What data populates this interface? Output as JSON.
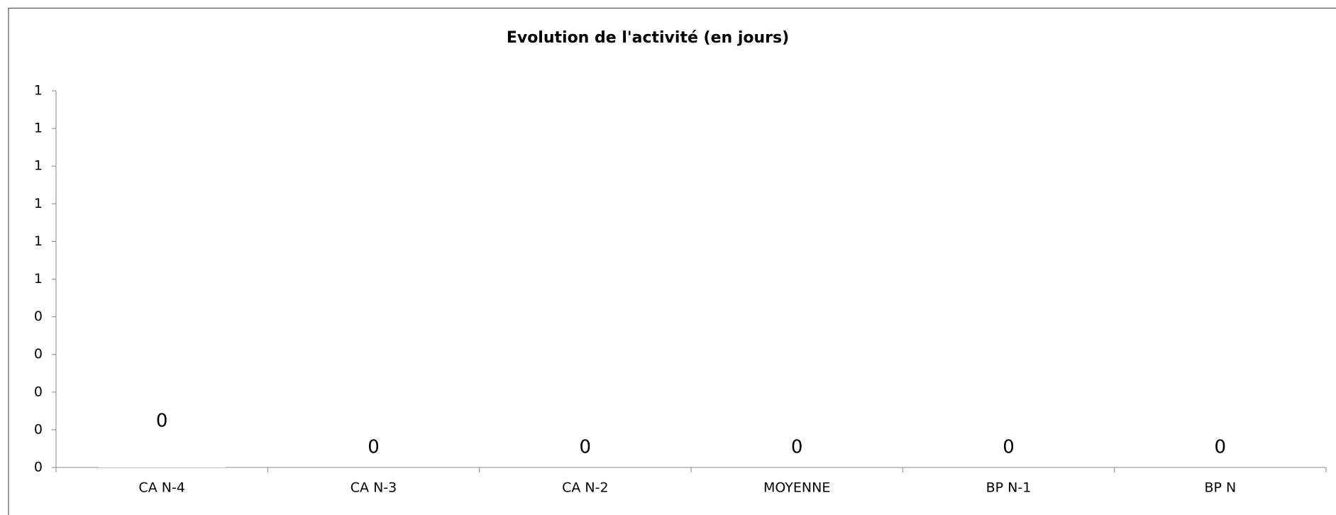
{
  "chart_data": {
    "type": "bar",
    "title": "Evolution de l'activité (en jours)",
    "categories": [
      "CA N-4",
      "CA N-3",
      "CA N-2",
      "MOYENNE",
      "BP N-1",
      "BP  N"
    ],
    "values": [
      0.07,
      0,
      0,
      0,
      0,
      0
    ],
    "value_labels": [
      "0",
      "0",
      "0",
      "0",
      "0",
      "0"
    ],
    "color": "#ffffff",
    "ylim": [
      0,
      1
    ],
    "yticks": [
      0,
      {
        "value": 0.1,
        "label": "0"
      },
      {
        "value": 0.2,
        "label": "0"
      },
      {
        "value": 0.3,
        "label": "0"
      },
      {
        "value": 0.4,
        "label": "0"
      },
      {
        "value": 0.5,
        "label": "1"
      },
      {
        "value": 0.6,
        "label": "1"
      },
      {
        "value": 0.7,
        "label": "1"
      },
      {
        "value": 0.8,
        "label": "1"
      },
      {
        "value": 0.9,
        "label": "1"
      },
      1
    ],
    "grid": false
  }
}
